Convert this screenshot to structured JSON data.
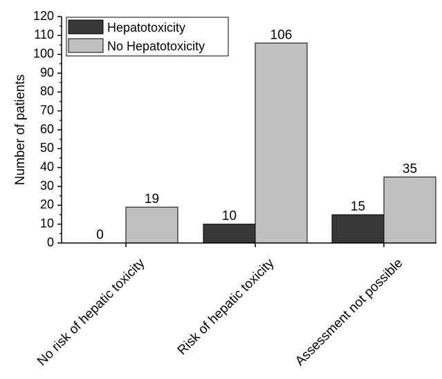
{
  "chart_data": {
    "type": "bar",
    "title": "",
    "xlabel": "",
    "ylabel": "Number of patients",
    "ylim": [
      0,
      120
    ],
    "yticks": [
      0,
      10,
      20,
      30,
      40,
      50,
      60,
      70,
      80,
      90,
      100,
      110,
      120
    ],
    "categories": [
      "No risk of hepatic toxicity",
      "Risk of hepatic toxicity",
      "Assessment not possible"
    ],
    "series": [
      {
        "name": "Hepatotoxicity",
        "values": [
          0,
          10,
          15
        ],
        "color": "#383838"
      },
      {
        "name": "No Hepatotoxicity",
        "values": [
          19,
          106,
          35
        ],
        "color": "#c0c0c0"
      }
    ],
    "legend_position": "top-left",
    "grid": false
  }
}
